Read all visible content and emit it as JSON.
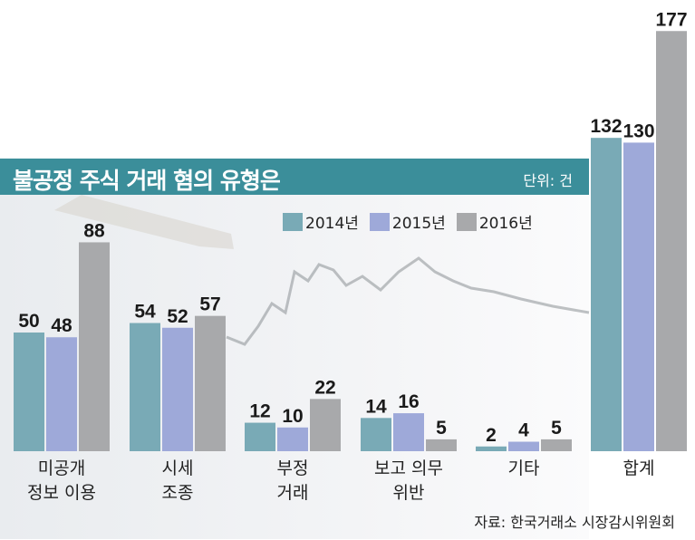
{
  "chart_data": {
    "type": "bar",
    "title": "불공정 주식 거래 혐의 유형은",
    "unit": "단위: 건",
    "source": "자료: 한국거래소 시장감시위원회",
    "categories": [
      [
        "미공개",
        "정보 이용"
      ],
      [
        "시세",
        "조종"
      ],
      [
        "부정",
        "거래"
      ],
      [
        "보고 의무",
        "위반"
      ],
      [
        "기타"
      ],
      [
        "합계"
      ]
    ],
    "series": [
      {
        "name": "2014년",
        "color": "#79aab6",
        "values": [
          50,
          54,
          12,
          14,
          2,
          132
        ]
      },
      {
        "name": "2015년",
        "color": "#9ea9d9",
        "values": [
          48,
          52,
          10,
          16,
          4,
          130
        ]
      },
      {
        "name": "2016년",
        "color": "#a8a9ab",
        "values": [
          88,
          57,
          22,
          5,
          5,
          177
        ]
      }
    ]
  }
}
